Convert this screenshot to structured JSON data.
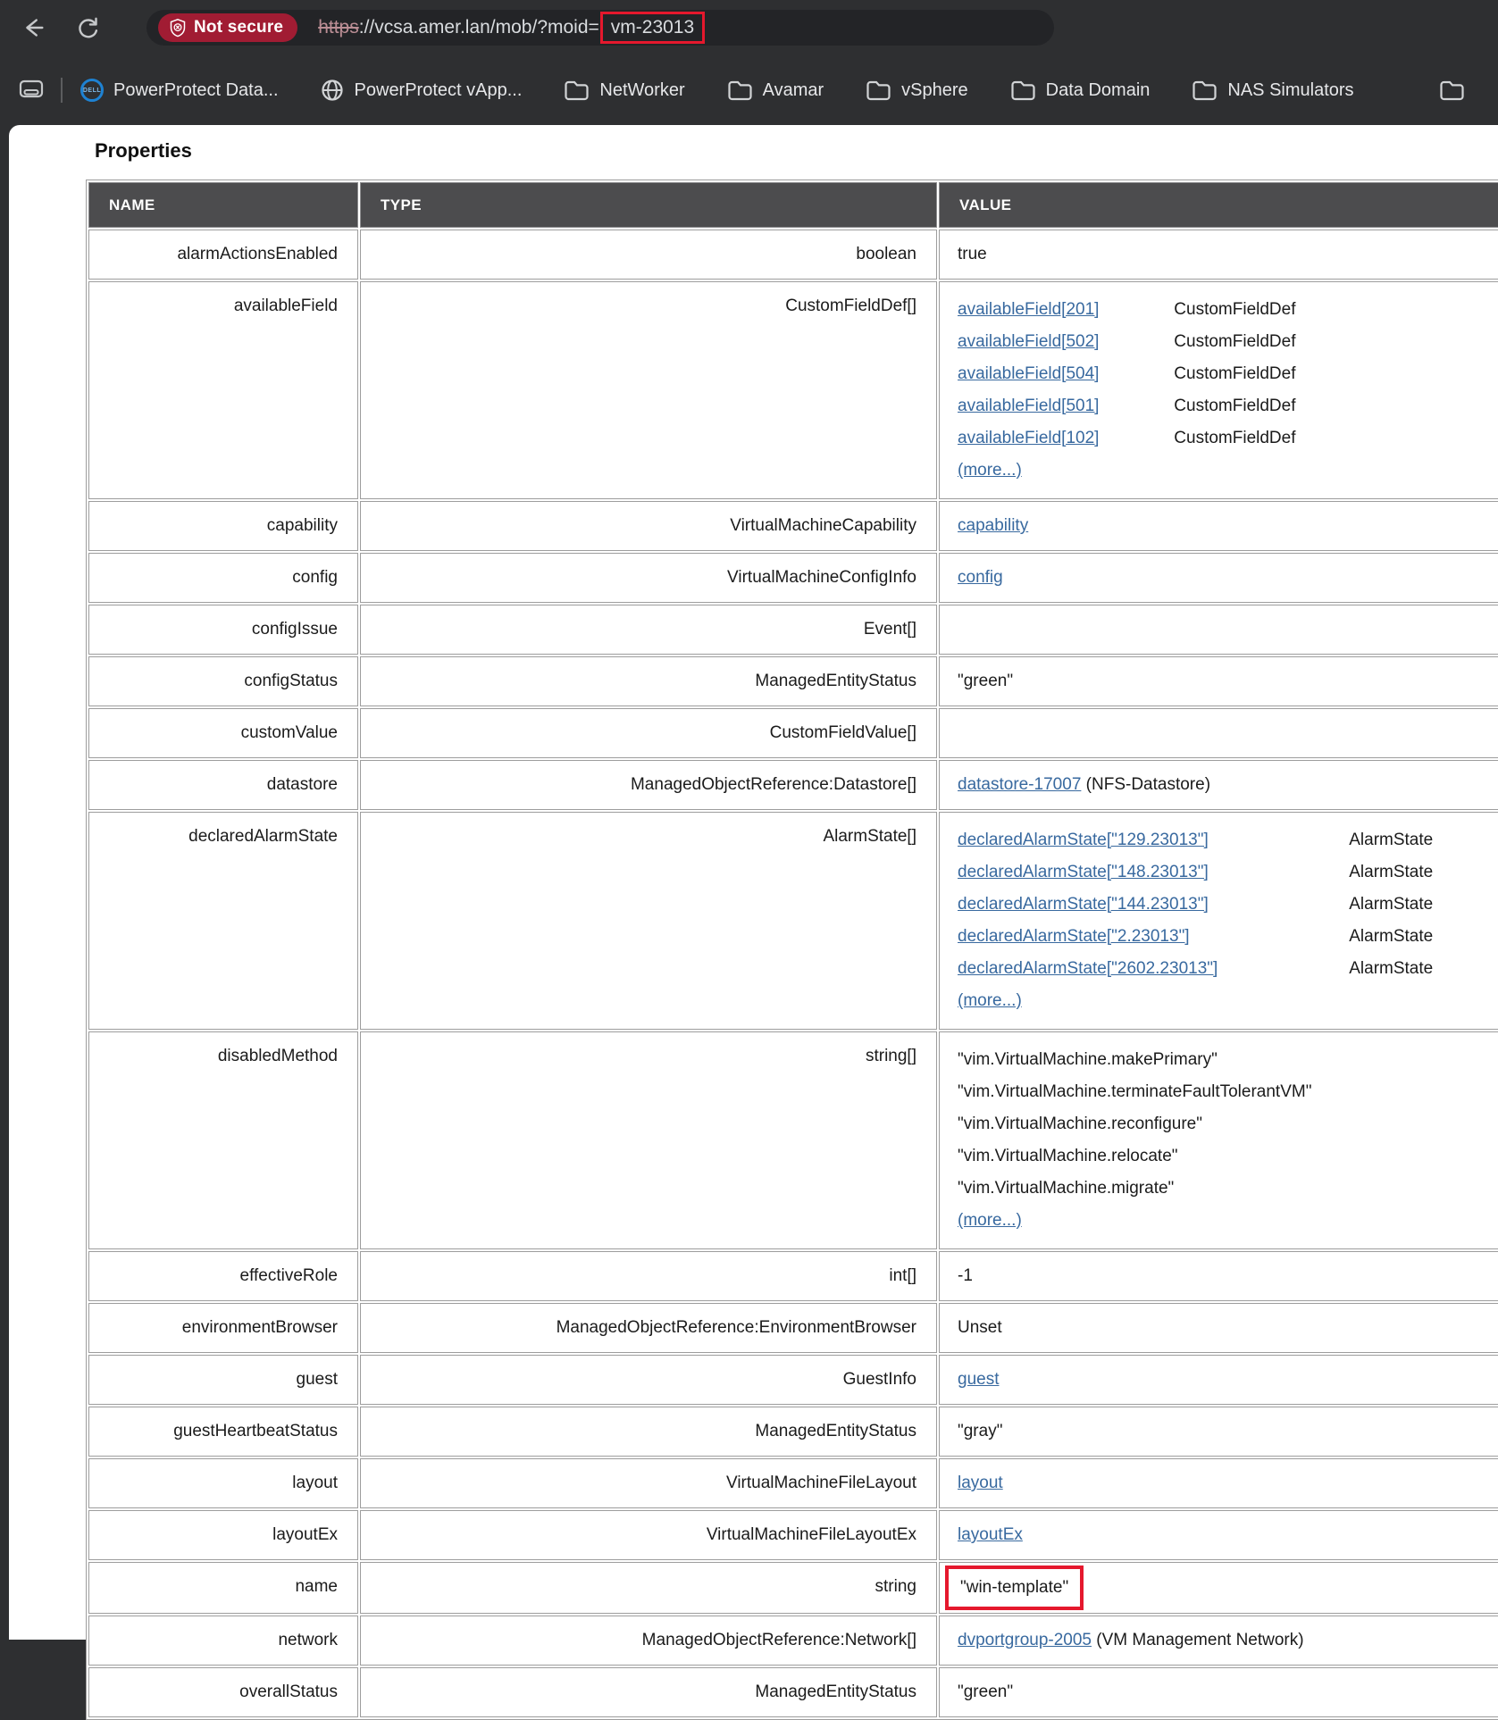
{
  "colors": {
    "chrome_bg": "#2e2f31",
    "urlbar_bg": "#232427",
    "badge_red": "#a11c33",
    "annotation_red": "#e5182d",
    "table_header_bg": "#4c4c4e",
    "link_blue": "#38699f"
  },
  "browser": {
    "badge_label": "Not secure",
    "url": {
      "scheme": "https",
      "rest": "://vcsa.amer.lan/mob/?moid=",
      "moid": "vm-23013"
    },
    "bookmarks": [
      {
        "icon": "dell-logo-icon",
        "label": "PowerProtect Data..."
      },
      {
        "icon": "globe-icon",
        "label": "PowerProtect vApp..."
      },
      {
        "icon": "folder-icon",
        "label": "NetWorker"
      },
      {
        "icon": "folder-icon",
        "label": "Avamar"
      },
      {
        "icon": "folder-icon",
        "label": "vSphere"
      },
      {
        "icon": "folder-icon",
        "label": "Data Domain"
      },
      {
        "icon": "folder-icon",
        "label": "NAS Simulators"
      }
    ]
  },
  "page": {
    "heading": "Properties",
    "table": {
      "columns": [
        "NAME",
        "TYPE",
        "VALUE"
      ],
      "rows": [
        {
          "name": "alarmActionsEnabled",
          "type": "boolean",
          "value": {
            "kind": "text",
            "text": "true"
          }
        },
        {
          "name": "availableField",
          "type": "CustomFieldDef[]",
          "value": {
            "kind": "links",
            "link_col": "availableField",
            "more": "(more...)",
            "items": [
              {
                "link": "availableField[201]",
                "suffix": "CustomFieldDef"
              },
              {
                "link": "availableField[502]",
                "suffix": "CustomFieldDef"
              },
              {
                "link": "availableField[504]",
                "suffix": "CustomFieldDef"
              },
              {
                "link": "availableField[501]",
                "suffix": "CustomFieldDef"
              },
              {
                "link": "availableField[102]",
                "suffix": "CustomFieldDef"
              }
            ]
          }
        },
        {
          "name": "capability",
          "type": "VirtualMachineCapability",
          "value": {
            "kind": "link",
            "text": "capability"
          }
        },
        {
          "name": "config",
          "type": "VirtualMachineConfigInfo",
          "value": {
            "kind": "link",
            "text": "config"
          }
        },
        {
          "name": "configIssue",
          "type": "Event[]",
          "value": {
            "kind": "empty"
          }
        },
        {
          "name": "configStatus",
          "type": "ManagedEntityStatus",
          "value": {
            "kind": "text",
            "text": "\"green\""
          }
        },
        {
          "name": "customValue",
          "type": "CustomFieldValue[]",
          "value": {
            "kind": "empty"
          }
        },
        {
          "name": "datastore",
          "type": "ManagedObjectReference:Datastore[]",
          "value": {
            "kind": "linktext",
            "link": "datastore-17007",
            "suffix": "(NFS-Datastore)"
          }
        },
        {
          "name": "declaredAlarmState",
          "type": "AlarmState[]",
          "value": {
            "kind": "links",
            "link_col": "declaredAlarmState",
            "more": "(more...)",
            "items": [
              {
                "link": "declaredAlarmState[\"129.23013\"]",
                "suffix": "AlarmState"
              },
              {
                "link": "declaredAlarmState[\"148.23013\"]",
                "suffix": "AlarmState"
              },
              {
                "link": "declaredAlarmState[\"144.23013\"]",
                "suffix": "AlarmState"
              },
              {
                "link": "declaredAlarmState[\"2.23013\"]",
                "suffix": "AlarmState"
              },
              {
                "link": "declaredAlarmState[\"2602.23013\"]",
                "suffix": "AlarmState"
              }
            ]
          }
        },
        {
          "name": "disabledMethod",
          "type": "string[]",
          "value": {
            "kind": "strings",
            "more": "(more...)",
            "items": [
              "\"vim.VirtualMachine.makePrimary\"",
              "\"vim.VirtualMachine.terminateFaultTolerantVM\"",
              "\"vim.VirtualMachine.reconfigure\"",
              "\"vim.VirtualMachine.relocate\"",
              "\"vim.VirtualMachine.migrate\""
            ]
          }
        },
        {
          "name": "effectiveRole",
          "type": "int[]",
          "value": {
            "kind": "text",
            "text": "-1"
          }
        },
        {
          "name": "environmentBrowser",
          "type": "ManagedObjectReference:EnvironmentBrowser",
          "value": {
            "kind": "text",
            "text": "Unset"
          }
        },
        {
          "name": "guest",
          "type": "GuestInfo",
          "value": {
            "kind": "link",
            "text": "guest"
          }
        },
        {
          "name": "guestHeartbeatStatus",
          "type": "ManagedEntityStatus",
          "value": {
            "kind": "text",
            "text": "\"gray\""
          }
        },
        {
          "name": "layout",
          "type": "VirtualMachineFileLayout",
          "value": {
            "kind": "link",
            "text": "layout"
          }
        },
        {
          "name": "layoutEx",
          "type": "VirtualMachineFileLayoutEx",
          "value": {
            "kind": "link",
            "text": "layoutEx"
          }
        },
        {
          "name": "name",
          "type": "string",
          "value": {
            "kind": "boxed",
            "text": "\"win-template\""
          }
        },
        {
          "name": "network",
          "type": "ManagedObjectReference:Network[]",
          "value": {
            "kind": "linktext",
            "link": "dvportgroup-2005",
            "suffix": "(VM Management Network)"
          }
        },
        {
          "name": "overallStatus",
          "type": "ManagedEntityStatus",
          "value": {
            "kind": "text",
            "text": "\"green\""
          }
        }
      ]
    }
  }
}
